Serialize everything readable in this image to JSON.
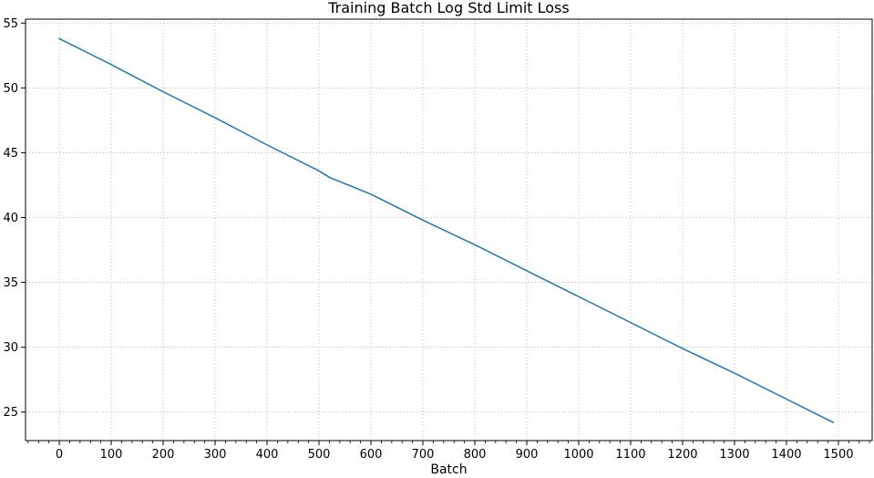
{
  "chart_data": {
    "type": "line",
    "title": "Training Batch Log Std Limit Loss",
    "xlabel": "Batch",
    "ylabel": "",
    "xlim": [
      -65,
      1565
    ],
    "ylim": [
      22.8,
      55.3
    ],
    "x_ticks": [
      0,
      100,
      200,
      300,
      400,
      500,
      600,
      700,
      800,
      900,
      1000,
      1100,
      1200,
      1300,
      1400,
      1500
    ],
    "x_minor_step": 20,
    "y_ticks": [
      25,
      30,
      35,
      40,
      45,
      50,
      55
    ],
    "grid": true,
    "colors": {
      "line": "#1f77b4",
      "grid": "#b0b0b0",
      "frame": "#000000"
    },
    "series": [
      {
        "x": [
          0,
          100,
          200,
          300,
          400,
          500,
          520,
          600,
          700,
          800,
          900,
          1000,
          1100,
          1200,
          1300,
          1400,
          1490
        ],
        "y": [
          53.8,
          51.8,
          49.7,
          47.7,
          45.6,
          43.6,
          43.1,
          41.8,
          39.8,
          37.9,
          35.9,
          33.9,
          31.9,
          29.9,
          28.0,
          26.0,
          24.2
        ]
      }
    ]
  }
}
